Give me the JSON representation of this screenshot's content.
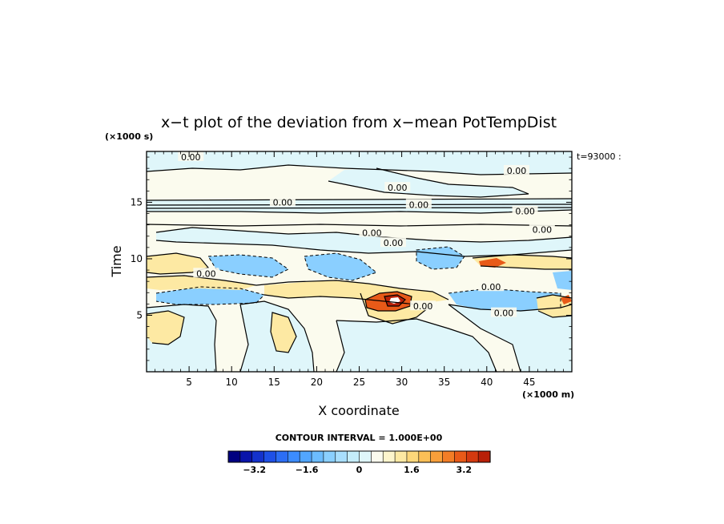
{
  "chart_data": {
    "type": "heatmap",
    "title": "x−t plot of the deviation from x−mean PotTempDist",
    "xlabel": "X coordinate",
    "ylabel": "Time",
    "x_unit": "(×1000 m)",
    "y_unit": "(×1000 s)",
    "time_label": "t=93000 :",
    "x_ticks": [
      5,
      10,
      15,
      20,
      25,
      30,
      35,
      40,
      45
    ],
    "y_ticks": [
      5,
      10,
      15
    ],
    "xlim": [
      0,
      50
    ],
    "ylim": [
      0,
      19.5
    ],
    "contour_labels": [
      {
        "text": "0.00",
        "x": 5.2,
        "y": 19.0
      },
      {
        "text": "0.00",
        "x": 43.5,
        "y": 17.8
      },
      {
        "text": "0.00",
        "x": 29.5,
        "y": 16.3
      },
      {
        "text": "0.00",
        "x": 32.0,
        "y": 14.8
      },
      {
        "text": "0.00",
        "x": 16.0,
        "y": 15.0
      },
      {
        "text": "0.00",
        "x": 44.5,
        "y": 14.2
      },
      {
        "text": "0.00",
        "x": 46.5,
        "y": 12.6
      },
      {
        "text": "0.00",
        "x": 26.5,
        "y": 12.3
      },
      {
        "text": "0.00",
        "x": 29.0,
        "y": 11.4
      },
      {
        "text": "0.00",
        "x": 7.0,
        "y": 8.7
      },
      {
        "text": "0.00",
        "x": 40.5,
        "y": 7.5
      },
      {
        "text": "0.00",
        "x": 32.5,
        "y": 5.8
      },
      {
        "text": "0.00",
        "x": 42.0,
        "y": 5.2
      }
    ],
    "colorbar": {
      "title": "CONTOUR INTERVAL = 1.000E+00",
      "min": -4.0,
      "max": 4.0,
      "step": 0.4,
      "tick_values": [
        -3.2,
        -1.6,
        0,
        1.6,
        3.2
      ],
      "tick_labels": [
        "−3.2",
        "−1.6",
        "0",
        "1.6",
        "3.2"
      ],
      "colors": [
        "#000080",
        "#0a14aa",
        "#1432cc",
        "#1e50e6",
        "#2c6ef5",
        "#3c8cff",
        "#52a6ff",
        "#6cbcff",
        "#8acfff",
        "#a8defd",
        "#c4ecfa",
        "#dff6fa",
        "#fbfbee",
        "#fdf5cc",
        "#fde9a3",
        "#fcd77a",
        "#fbbf57",
        "#f89f3a",
        "#f27d26",
        "#e85a18",
        "#d43a10",
        "#b82008"
      ]
    },
    "colors": {
      "background": "#fbfbee",
      "near_zero_negative": "#dff6fa",
      "negative": "#8acfff",
      "positive": "#fde9a3",
      "strong_positive": "#e85a18",
      "contour": "#000000"
    }
  }
}
